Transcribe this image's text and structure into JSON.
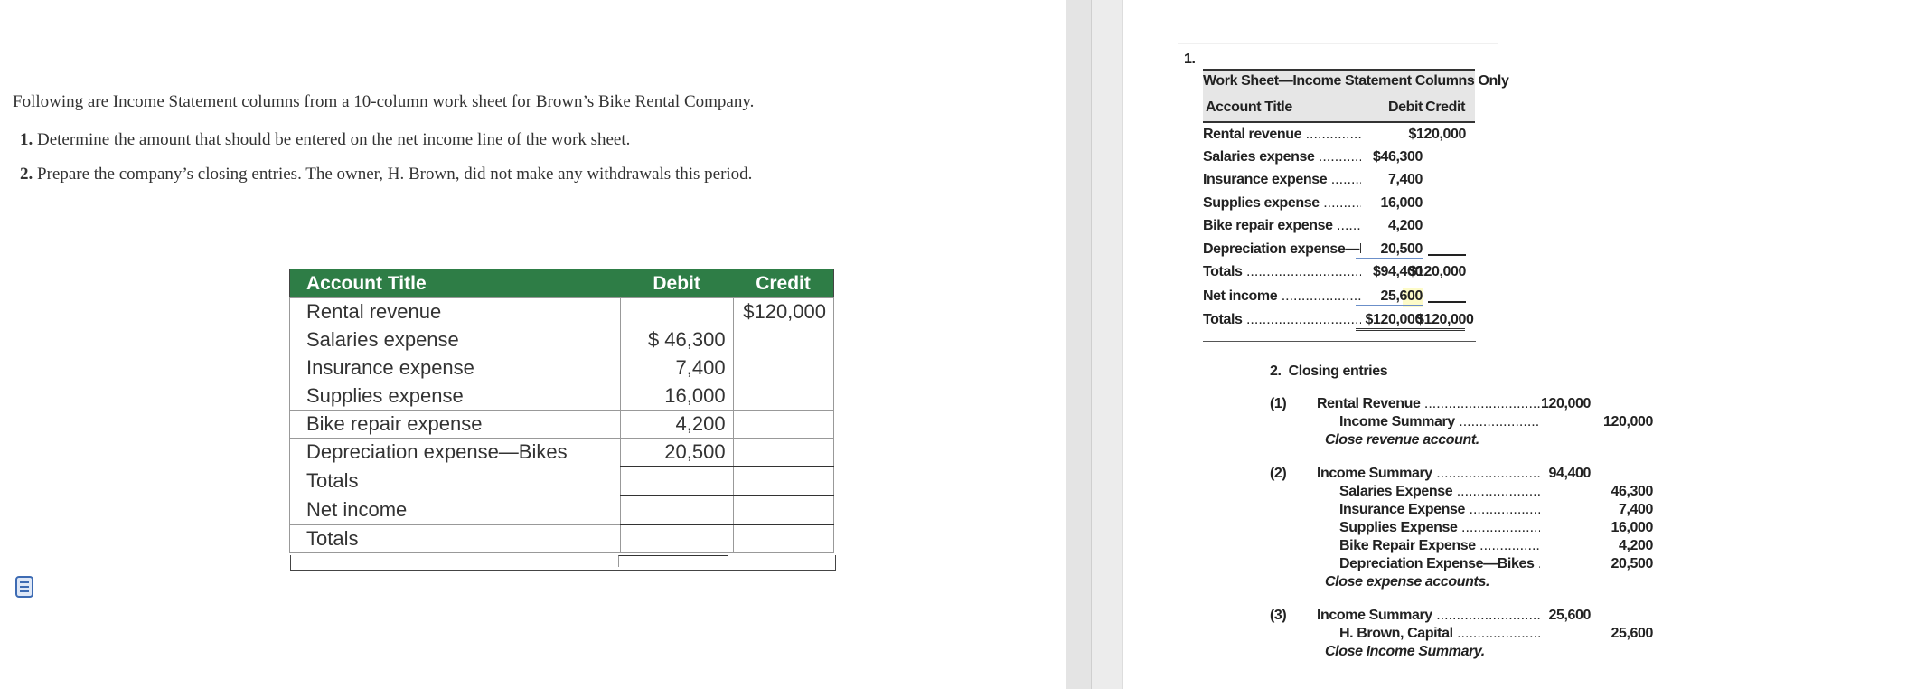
{
  "question": {
    "intro": "Following are Income Statement columns from a 10-column work sheet for Brown’s Bike Rental Company.",
    "items": [
      {
        "num": "1.",
        "text": " Determine the amount that should be entered on the net income line of the work sheet."
      },
      {
        "num": "2.",
        "text": " Prepare the company’s closing entries. The owner, H. Brown, did not make any withdrawals this period."
      }
    ]
  },
  "given_table": {
    "header_color": "#2e7d46",
    "columns": [
      "Account Title",
      "Debit",
      "Credit"
    ],
    "rows": [
      {
        "title": "Rental revenue",
        "debit": "",
        "credit": "$120,000"
      },
      {
        "title": "Salaries expense",
        "debit": "$ 46,300",
        "credit": ""
      },
      {
        "title": "Insurance expense",
        "debit": "7,400",
        "credit": ""
      },
      {
        "title": "Supplies expense",
        "debit": "16,000",
        "credit": ""
      },
      {
        "title": "Bike repair expense",
        "debit": "4,200",
        "credit": ""
      },
      {
        "title": "Depreciation expense—Bikes",
        "debit": "20,500",
        "credit": ""
      },
      {
        "title": "Totals",
        "debit": "",
        "credit": ""
      },
      {
        "title": "Net income",
        "debit": "",
        "credit": ""
      },
      {
        "title": "Totals",
        "debit": "",
        "credit": ""
      }
    ]
  },
  "note_icon": "document-icon",
  "solution": {
    "part1_label": "1.",
    "worksheet": {
      "title": "Work Sheet—Income Statement Columns Only",
      "columns": [
        "Account Title",
        "Debit",
        "Credit"
      ],
      "rows": [
        {
          "title": "Rental revenue",
          "debit": "",
          "credit": "$120,000"
        },
        {
          "title": "Salaries expense",
          "debit": "$46,300",
          "credit": ""
        },
        {
          "title": "Insurance expense",
          "debit": "7,400",
          "credit": ""
        },
        {
          "title": "Supplies expense",
          "debit": "16,000",
          "credit": ""
        },
        {
          "title": "Bike repair expense",
          "debit": "4,200",
          "credit": ""
        },
        {
          "title": "Depreciation expense—Bikes",
          "debit": "20,500",
          "credit": ""
        },
        {
          "title": "Totals",
          "debit": "$94,400",
          "credit": "$120,000"
        },
        {
          "title": "Net income",
          "debit": "25,600",
          "credit": ""
        },
        {
          "title": "Totals",
          "debit": "$120,000",
          "credit": "$120,000"
        }
      ]
    },
    "part2_label": "2.  Closing entries",
    "entries": [
      {
        "num": "(1)",
        "lines": [
          {
            "account": "Rental Revenue",
            "debit": "120,000",
            "credit": "",
            "indent": false
          },
          {
            "account": "Income Summary",
            "debit": "",
            "credit": "120,000",
            "indent": true
          }
        ],
        "memo": "Close revenue account."
      },
      {
        "num": "(2)",
        "lines": [
          {
            "account": "Income Summary",
            "debit": "94,400",
            "credit": "",
            "indent": false
          },
          {
            "account": "Salaries Expense",
            "debit": "",
            "credit": "46,300",
            "indent": true
          },
          {
            "account": "Insurance Expense",
            "debit": "",
            "credit": "7,400",
            "indent": true
          },
          {
            "account": "Supplies Expense",
            "debit": "",
            "credit": "16,000",
            "indent": true
          },
          {
            "account": "Bike Repair Expense",
            "debit": "",
            "credit": "4,200",
            "indent": true
          },
          {
            "account": "Depreciation Expense—Bikes",
            "debit": "",
            "credit": "20,500",
            "indent": true
          }
        ],
        "memo": "Close expense accounts."
      },
      {
        "num": "(3)",
        "lines": [
          {
            "account": "Income Summary",
            "debit": "25,600",
            "credit": "",
            "indent": false
          },
          {
            "account": "H. Brown, Capital",
            "debit": "",
            "credit": "25,600",
            "indent": true
          }
        ],
        "memo": "Close Income Summary."
      }
    ]
  }
}
